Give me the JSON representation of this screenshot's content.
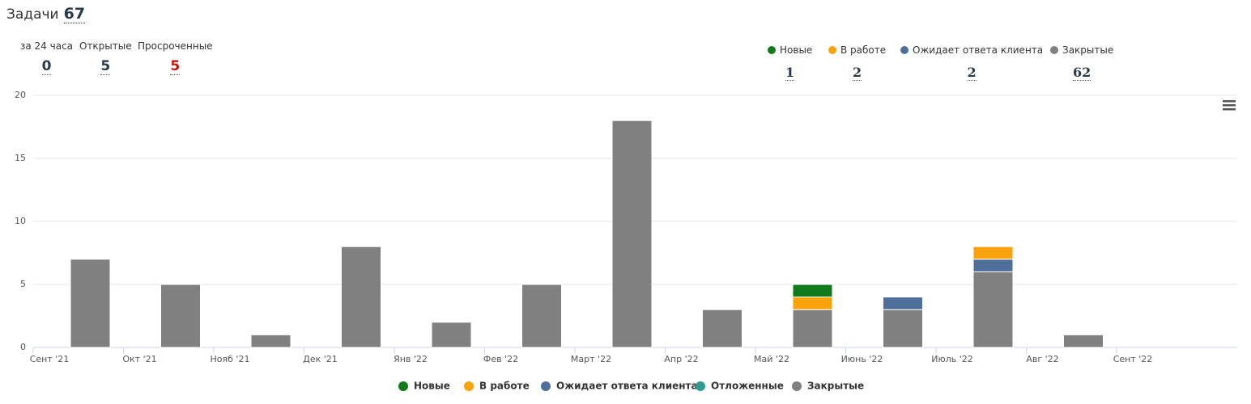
{
  "header": {
    "title": "Задачи",
    "total": 67
  },
  "stats": [
    {
      "label": "за 24 часа",
      "value": 0,
      "color": "#2b3a4a"
    },
    {
      "label": "Открытые",
      "value": 5,
      "color": "#2b3a4a"
    },
    {
      "label": "Просроченные",
      "value": 5,
      "color": "#c0150f"
    }
  ],
  "status_summary": [
    {
      "label": "Новые",
      "value": 1,
      "color": "#0f7b1d"
    },
    {
      "label": "В работе",
      "value": 2,
      "color": "#f8a20c"
    },
    {
      "label": "Ожидает ответа клиента",
      "value": 2,
      "color": "#4e6f9a"
    },
    {
      "label": "Закрытые",
      "value": 62,
      "color": "#808080"
    }
  ],
  "chart_data": {
    "type": "stacked_bar",
    "categories": [
      "Сент '21",
      "Окт '21",
      "Нояб '21",
      "Дек '21",
      "Янв '22",
      "Фев '22",
      "Март '22",
      "Апр '22",
      "Май '22",
      "Июнь '22",
      "Июль '22",
      "Авг '22",
      "Сент '22"
    ],
    "series": [
      {
        "name": "Новые",
        "color": "#0f7b1d",
        "values": [
          null,
          null,
          null,
          null,
          null,
          null,
          null,
          null,
          1,
          null,
          null,
          null,
          null
        ]
      },
      {
        "name": "В работе",
        "color": "#f8a20c",
        "values": [
          null,
          null,
          null,
          null,
          null,
          null,
          null,
          null,
          1,
          null,
          1,
          null,
          null
        ]
      },
      {
        "name": "Ожидает ответа клиента",
        "color": "#4e6f9a",
        "values": [
          null,
          null,
          null,
          null,
          null,
          null,
          null,
          null,
          null,
          1,
          1,
          null,
          null
        ]
      },
      {
        "name": "Отложенные",
        "color": "#2e9b8e",
        "values": [
          null,
          null,
          null,
          null,
          null,
          null,
          null,
          null,
          null,
          null,
          null,
          null,
          null
        ]
      },
      {
        "name": "Закрытые",
        "color": "#808080",
        "values": [
          7,
          5,
          1,
          8,
          2,
          5,
          18,
          3,
          3,
          3,
          6,
          1,
          null
        ]
      }
    ],
    "ylim": [
      0,
      20
    ],
    "yticks": [
      0,
      5,
      10,
      15,
      20
    ],
    "grid": true
  }
}
